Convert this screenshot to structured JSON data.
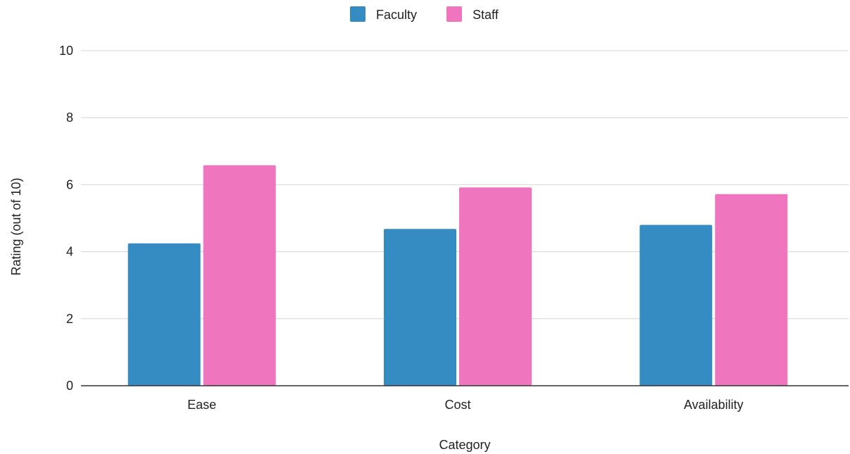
{
  "chart_data": {
    "type": "bar",
    "title": "",
    "xlabel": "Category",
    "ylabel": "Rating (out of 10)",
    "categories": [
      "Ease",
      "Cost",
      "Availability"
    ],
    "series": [
      {
        "name": "Faculty",
        "color": "#348cc2",
        "values": [
          4.25,
          4.68,
          4.8
        ]
      },
      {
        "name": "Staff",
        "color": "#f075bf",
        "values": [
          6.58,
          5.92,
          5.72
        ]
      }
    ],
    "ylim": [
      0,
      10
    ],
    "yticks": [
      0,
      2,
      4,
      6,
      8,
      10
    ],
    "grid": true,
    "legend": "top-center"
  }
}
